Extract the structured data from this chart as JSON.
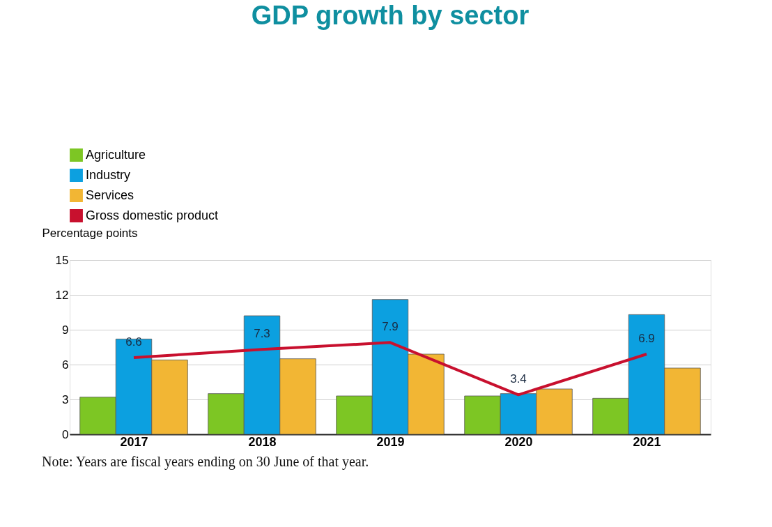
{
  "chart_data": {
    "type": "bar",
    "title": "GDP growth by sector",
    "ylabel": "Percentage points",
    "categories": [
      "2017",
      "2018",
      "2019",
      "2020",
      "2021"
    ],
    "series": [
      {
        "name": "Agriculture",
        "color": "#7dc624",
        "values": [
          3.2,
          3.5,
          3.3,
          3.3,
          3.1
        ]
      },
      {
        "name": "Industry",
        "color": "#0ca0e0",
        "values": [
          8.2,
          10.2,
          11.6,
          3.5,
          10.3
        ]
      },
      {
        "name": "Services",
        "color": "#f2b634",
        "values": [
          6.4,
          6.5,
          6.9,
          3.9,
          5.7
        ]
      },
      {
        "name": "Gross domestic product",
        "type": "line",
        "color": "#c8102e",
        "values": [
          6.6,
          7.3,
          7.9,
          3.4,
          6.9
        ],
        "value_labels": [
          "6.6",
          "7.3",
          "7.9",
          "3.4",
          "6.9"
        ]
      }
    ],
    "ylim": [
      0,
      15
    ],
    "yticks": [
      0,
      3,
      6,
      9,
      12,
      15
    ],
    "grid": "y",
    "legend": "top left",
    "annotations": [
      "Note: Years are fiscal years ending on 30 June of that year."
    ]
  }
}
